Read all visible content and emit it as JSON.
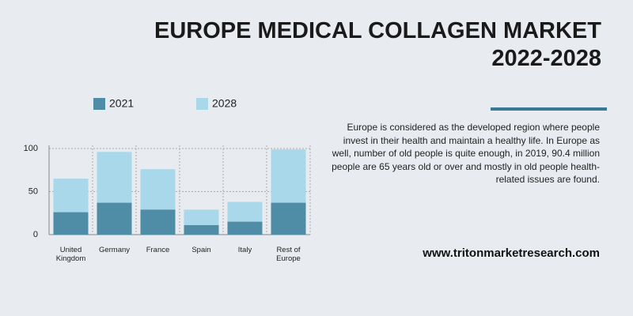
{
  "chart_data": {
    "type": "bar",
    "title": "EUROPE MEDICAL COLLAGEN MARKET 2022-2028",
    "description": "Europe is considered as the developed region where people invest in their health and maintain a healthy life. In Europe as well, number of old people is quite enough, in 2019, 90.4 million people are 65 years old or over and mostly in old people health-related issues are found.",
    "website": "www.tritonmarketresearch.com",
    "categories": [
      "United Kingdom",
      "Germany",
      "France",
      "Spain",
      "Italy",
      "Rest of Europe"
    ],
    "series": [
      {
        "name": "2021",
        "color": "#4f8ca6",
        "values": [
          26,
          37,
          29,
          11,
          15,
          37
        ]
      },
      {
        "name": "2028",
        "color": "#a8d8ea",
        "values": [
          65,
          96,
          76,
          29,
          38,
          99
        ]
      }
    ],
    "ylim": [
      0,
      100
    ],
    "yticks": [
      0,
      50,
      100
    ],
    "grid": true
  }
}
